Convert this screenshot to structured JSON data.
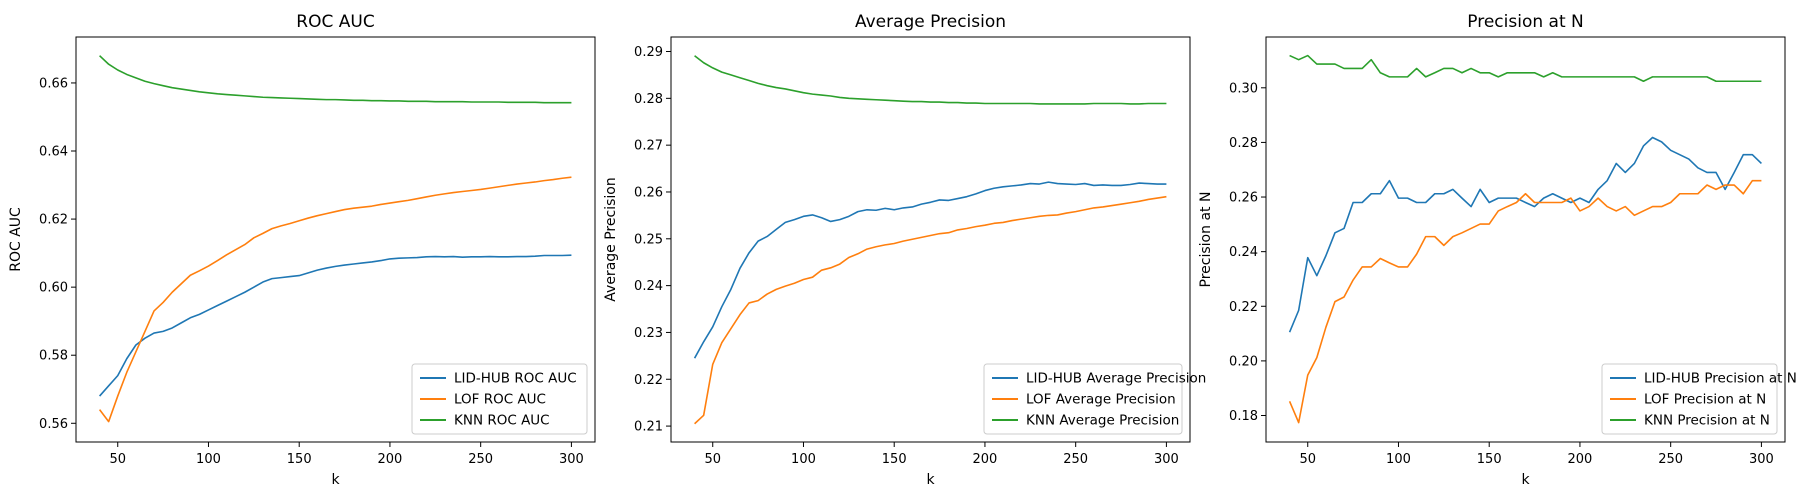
{
  "colors": {
    "LID-HUB": "#1f77b4",
    "LOF": "#ff7f0e",
    "KNN": "#2ca02c",
    "axes": "#000000",
    "background": "#ffffff"
  },
  "chart_data": [
    {
      "type": "line",
      "title": "ROC AUC",
      "xlabel": "k",
      "ylabel": "ROC AUC",
      "xlim": [
        27,
        313
      ],
      "ylim": [
        0.5545,
        0.6735
      ],
      "xticks": [
        50,
        100,
        150,
        200,
        250,
        300
      ],
      "yticks": [
        0.56,
        0.58,
        0.6,
        0.62,
        0.64,
        0.66
      ],
      "ytick_labels": [
        "0.56",
        "0.58",
        "0.60",
        "0.62",
        "0.64",
        "0.66"
      ],
      "grid": false,
      "legend_position": "lower right",
      "x": [
        40,
        45,
        50,
        55,
        60,
        65,
        70,
        75,
        80,
        85,
        90,
        95,
        100,
        105,
        110,
        115,
        120,
        125,
        130,
        135,
        140,
        145,
        150,
        155,
        160,
        165,
        170,
        175,
        180,
        185,
        190,
        195,
        200,
        205,
        210,
        215,
        220,
        225,
        230,
        235,
        240,
        245,
        250,
        255,
        260,
        265,
        270,
        275,
        280,
        285,
        290,
        295,
        300
      ],
      "series": [
        {
          "name": "LID-HUB ROC AUC",
          "color_key": "LID-HUB",
          "values": [
            0.568,
            0.571,
            0.574,
            0.579,
            0.583,
            0.585,
            0.5865,
            0.587,
            0.588,
            0.5895,
            0.591,
            0.592,
            0.5933,
            0.5946,
            0.5959,
            0.5972,
            0.5985,
            0.6,
            0.6015,
            0.6025,
            0.6028,
            0.6031,
            0.6034,
            0.6042,
            0.605,
            0.6056,
            0.6061,
            0.6065,
            0.6068,
            0.6071,
            0.6074,
            0.6078,
            0.6083,
            0.6085,
            0.6086,
            0.6087,
            0.6089,
            0.609,
            0.6089,
            0.609,
            0.6088,
            0.6089,
            0.6089,
            0.609,
            0.6089,
            0.6089,
            0.609,
            0.609,
            0.6091,
            0.6093,
            0.6093,
            0.6093,
            0.6094
          ]
        },
        {
          "name": "LOF ROC AUC",
          "color_key": "LOF",
          "values": [
            0.564,
            0.5605,
            0.568,
            0.575,
            0.581,
            0.587,
            0.593,
            0.5955,
            0.5985,
            0.601,
            0.6035,
            0.6048,
            0.6062,
            0.6078,
            0.6095,
            0.611,
            0.6125,
            0.6145,
            0.6158,
            0.6172,
            0.618,
            0.6187,
            0.6195,
            0.6203,
            0.621,
            0.6216,
            0.6222,
            0.6228,
            0.6232,
            0.6235,
            0.6238,
            0.6243,
            0.6247,
            0.6251,
            0.6255,
            0.626,
            0.6265,
            0.627,
            0.6274,
            0.6278,
            0.6281,
            0.6284,
            0.6287,
            0.6291,
            0.6295,
            0.6299,
            0.6303,
            0.6306,
            0.6309,
            0.6313,
            0.6316,
            0.632,
            0.6323
          ]
        },
        {
          "name": "KNN ROC AUC",
          "color_key": "KNN",
          "values": [
            0.668,
            0.6655,
            0.6638,
            0.6625,
            0.6615,
            0.6605,
            0.6598,
            0.6592,
            0.6586,
            0.6582,
            0.6578,
            0.6574,
            0.6571,
            0.6568,
            0.6566,
            0.6564,
            0.6562,
            0.656,
            0.6558,
            0.6557,
            0.6556,
            0.6555,
            0.6554,
            0.6553,
            0.6552,
            0.6551,
            0.6551,
            0.655,
            0.6549,
            0.6549,
            0.6548,
            0.6548,
            0.6547,
            0.6547,
            0.6546,
            0.6546,
            0.6546,
            0.6545,
            0.6545,
            0.6545,
            0.6545,
            0.6544,
            0.6544,
            0.6544,
            0.6544,
            0.6543,
            0.6543,
            0.6543,
            0.6543,
            0.6542,
            0.6542,
            0.6542,
            0.6542
          ]
        }
      ]
    },
    {
      "type": "line",
      "title": "Average Precision",
      "xlabel": "k",
      "ylabel": "Average Precision",
      "xlim": [
        27,
        313
      ],
      "ylim": [
        0.2066,
        0.2931
      ],
      "xticks": [
        50,
        100,
        150,
        200,
        250,
        300
      ],
      "yticks": [
        0.21,
        0.22,
        0.23,
        0.24,
        0.25,
        0.26,
        0.27,
        0.28,
        0.29
      ],
      "ytick_labels": [
        "0.21",
        "0.22",
        "0.23",
        "0.24",
        "0.25",
        "0.26",
        "0.27",
        "0.28",
        "0.29"
      ],
      "grid": false,
      "legend_position": "lower right",
      "x": [
        40,
        45,
        50,
        55,
        60,
        65,
        70,
        75,
        80,
        85,
        90,
        95,
        100,
        105,
        110,
        115,
        120,
        125,
        130,
        135,
        140,
        145,
        150,
        155,
        160,
        165,
        170,
        175,
        180,
        185,
        190,
        195,
        200,
        205,
        210,
        215,
        220,
        225,
        230,
        235,
        240,
        245,
        250,
        255,
        260,
        265,
        270,
        275,
        280,
        285,
        290,
        295,
        300
      ],
      "series": [
        {
          "name": "LID-HUB Average Precision",
          "color_key": "LID-HUB",
          "values": [
            0.2245,
            0.228,
            0.2312,
            0.2355,
            0.2392,
            0.2437,
            0.247,
            0.2495,
            0.2505,
            0.252,
            0.2535,
            0.2541,
            0.2548,
            0.2551,
            0.2545,
            0.2537,
            0.2541,
            0.2548,
            0.2558,
            0.2562,
            0.2561,
            0.2565,
            0.2562,
            0.2566,
            0.2568,
            0.2574,
            0.2578,
            0.2583,
            0.2582,
            0.2586,
            0.259,
            0.2596,
            0.2603,
            0.2608,
            0.2611,
            0.2613,
            0.2615,
            0.2618,
            0.2617,
            0.2621,
            0.2618,
            0.2617,
            0.2616,
            0.2618,
            0.2614,
            0.2615,
            0.2614,
            0.2614,
            0.2616,
            0.2619,
            0.2618,
            0.2617,
            0.2617
          ]
        },
        {
          "name": "LOF Average Precision",
          "color_key": "LOF",
          "values": [
            0.2105,
            0.2123,
            0.2232,
            0.2278,
            0.2308,
            0.2338,
            0.2363,
            0.2368,
            0.2382,
            0.2392,
            0.2399,
            0.2405,
            0.2413,
            0.2418,
            0.2433,
            0.2438,
            0.2446,
            0.246,
            0.2468,
            0.2478,
            0.2483,
            0.2487,
            0.249,
            0.2495,
            0.2499,
            0.2503,
            0.2507,
            0.2511,
            0.2513,
            0.2519,
            0.2522,
            0.2526,
            0.2529,
            0.2533,
            0.2535,
            0.2539,
            0.2542,
            0.2545,
            0.2548,
            0.255,
            0.2551,
            0.2555,
            0.2558,
            0.2562,
            0.2566,
            0.2568,
            0.2571,
            0.2574,
            0.2577,
            0.258,
            0.2584,
            0.2587,
            0.259
          ]
        },
        {
          "name": "KNN Average Precision",
          "color_key": "KNN",
          "values": [
            0.2891,
            0.2876,
            0.2865,
            0.2856,
            0.285,
            0.2844,
            0.2838,
            0.2832,
            0.2827,
            0.2823,
            0.282,
            0.2816,
            0.2812,
            0.2809,
            0.2807,
            0.2805,
            0.2802,
            0.28,
            0.2799,
            0.2798,
            0.2797,
            0.2796,
            0.2795,
            0.2794,
            0.2793,
            0.2793,
            0.2792,
            0.2792,
            0.2791,
            0.2791,
            0.279,
            0.279,
            0.2789,
            0.2789,
            0.2789,
            0.2789,
            0.2789,
            0.2789,
            0.2788,
            0.2788,
            0.2788,
            0.2788,
            0.2788,
            0.2788,
            0.2789,
            0.2789,
            0.2789,
            0.2789,
            0.2788,
            0.2788,
            0.2789,
            0.2789,
            0.2789
          ]
        }
      ]
    },
    {
      "type": "line",
      "title": "Precision at N",
      "xlabel": "k",
      "ylabel": "Precision at N",
      "xlim": [
        27,
        313
      ],
      "ylim": [
        0.1703,
        0.3186
      ],
      "xticks": [
        50,
        100,
        150,
        200,
        250,
        300
      ],
      "yticks": [
        0.18,
        0.2,
        0.22,
        0.24,
        0.26,
        0.28,
        0.3
      ],
      "ytick_labels": [
        "0.18",
        "0.20",
        "0.22",
        "0.24",
        "0.26",
        "0.28",
        "0.30"
      ],
      "grid": false,
      "legend_position": "lower right",
      "x": [
        40,
        45,
        50,
        55,
        60,
        65,
        70,
        75,
        80,
        85,
        90,
        95,
        100,
        105,
        110,
        115,
        120,
        125,
        130,
        135,
        140,
        145,
        150,
        155,
        160,
        165,
        170,
        175,
        180,
        185,
        190,
        195,
        200,
        205,
        210,
        215,
        220,
        225,
        230,
        235,
        240,
        245,
        250,
        255,
        260,
        265,
        270,
        275,
        280,
        285,
        290,
        295,
        300
      ],
      "series": [
        {
          "name": "LID-HUB Precision at N",
          "color_key": "LID-HUB",
          "values": [
            0.2105,
            0.2185,
            0.2378,
            0.2312,
            0.2385,
            0.2469,
            0.2485,
            0.258,
            0.258,
            0.2612,
            0.2612,
            0.266,
            0.2596,
            0.2596,
            0.258,
            0.258,
            0.2612,
            0.2612,
            0.2628,
            0.2596,
            0.2565,
            0.2628,
            0.258,
            0.2596,
            0.2596,
            0.2596,
            0.258,
            0.2565,
            0.2596,
            0.2612,
            0.2596,
            0.258,
            0.2596,
            0.258,
            0.2628,
            0.266,
            0.2723,
            0.269,
            0.2723,
            0.2787,
            0.2818,
            0.2802,
            0.2771,
            0.2755,
            0.2739,
            0.2707,
            0.269,
            0.269,
            0.2628,
            0.269,
            0.2755,
            0.2755,
            0.2723
          ]
        },
        {
          "name": "LOF Precision at N",
          "color_key": "LOF",
          "values": [
            0.1852,
            0.1774,
            0.1948,
            0.2012,
            0.2123,
            0.2217,
            0.2234,
            0.2296,
            0.2344,
            0.2344,
            0.2375,
            0.2359,
            0.2344,
            0.2344,
            0.2391,
            0.2455,
            0.2455,
            0.2423,
            0.2455,
            0.2469,
            0.2485,
            0.2501,
            0.2501,
            0.2549,
            0.2565,
            0.258,
            0.2612,
            0.258,
            0.258,
            0.258,
            0.258,
            0.2596,
            0.2549,
            0.2565,
            0.2596,
            0.2565,
            0.2549,
            0.2565,
            0.2533,
            0.2549,
            0.2565,
            0.2565,
            0.258,
            0.2612,
            0.2612,
            0.2612,
            0.2644,
            0.2628,
            0.2644,
            0.2644,
            0.2612,
            0.266,
            0.266
          ]
        },
        {
          "name": "KNN Precision at N",
          "color_key": "KNN",
          "values": [
            0.3118,
            0.3103,
            0.3118,
            0.3087,
            0.3087,
            0.3087,
            0.3071,
            0.3071,
            0.3071,
            0.3103,
            0.3055,
            0.304,
            0.304,
            0.304,
            0.3071,
            0.304,
            0.3055,
            0.3071,
            0.3071,
            0.3055,
            0.3071,
            0.3055,
            0.3055,
            0.304,
            0.3055,
            0.3055,
            0.3055,
            0.3055,
            0.304,
            0.3055,
            0.304,
            0.304,
            0.304,
            0.304,
            0.304,
            0.304,
            0.304,
            0.304,
            0.304,
            0.3024,
            0.304,
            0.304,
            0.304,
            0.304,
            0.304,
            0.304,
            0.304,
            0.3024,
            0.3024,
            0.3024,
            0.3024,
            0.3024,
            0.3024
          ]
        }
      ]
    }
  ]
}
